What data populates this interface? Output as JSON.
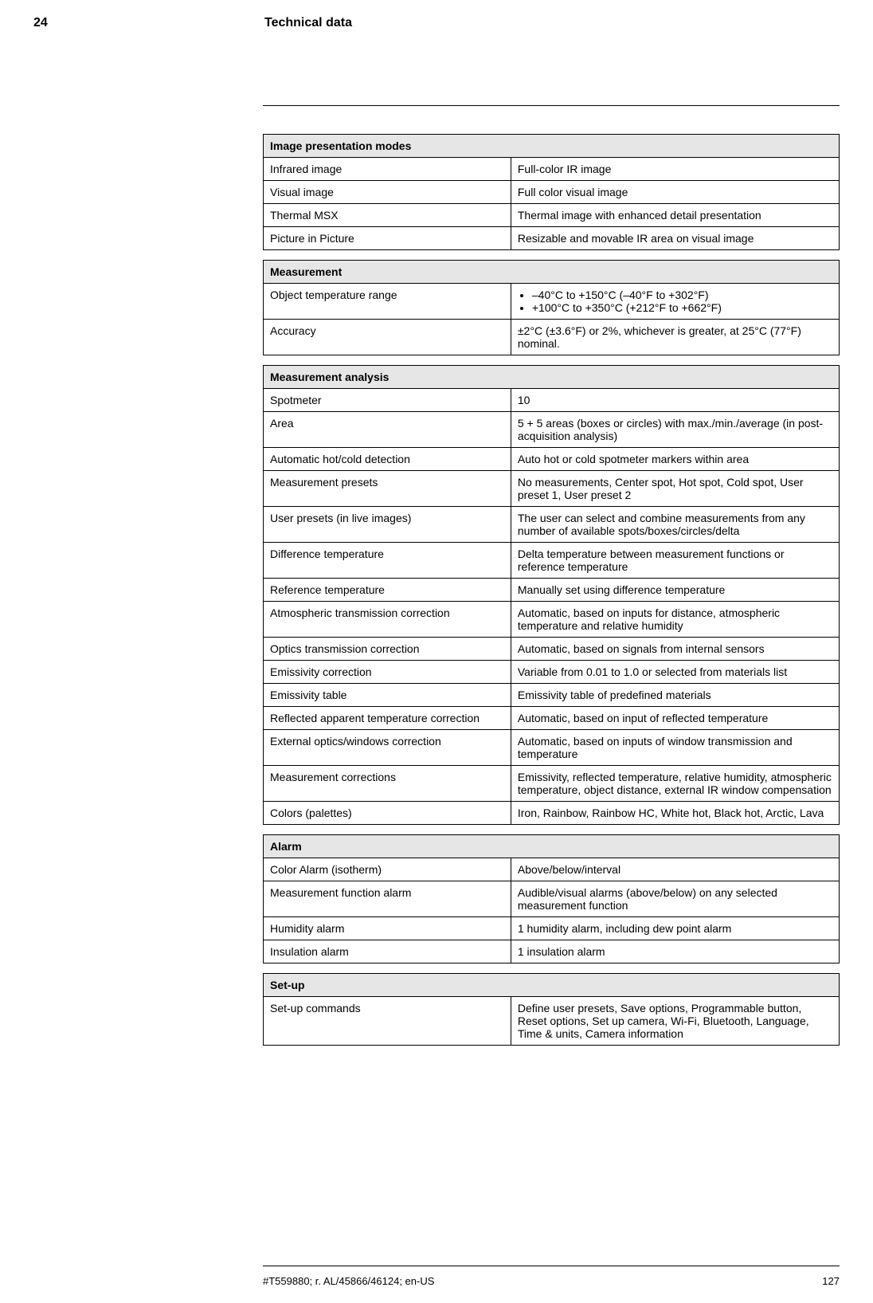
{
  "header": {
    "section_number": "24",
    "title": "Technical data"
  },
  "tables": {
    "image_presentation": {
      "header": "Image presentation modes",
      "rows": [
        {
          "k": "Infrared image",
          "v": "Full-color IR image"
        },
        {
          "k": "Visual image",
          "v": "Full color visual image"
        },
        {
          "k": "Thermal MSX",
          "v": "Thermal image with enhanced detail presentation"
        },
        {
          "k": "Picture in Picture",
          "v": "Resizable and movable IR area on visual image"
        }
      ]
    },
    "measurement": {
      "header": "Measurement",
      "rows": [
        {
          "k": "Object temperature range",
          "list": [
            "–40°C to +150°C (–40°F to +302°F)",
            "+100°C to +350°C (+212°F to +662°F)"
          ]
        },
        {
          "k": "Accuracy",
          "v": "±2°C (±3.6°F) or 2%, whichever is greater, at 25°C (77°F) nominal."
        }
      ]
    },
    "measurement_analysis": {
      "header": "Measurement analysis",
      "rows": [
        {
          "k": "Spotmeter",
          "v": "10"
        },
        {
          "k": "Area",
          "v": "5 + 5 areas (boxes or circles) with max./min./average (in post-acquisition analysis)"
        },
        {
          "k": "Automatic hot/cold detection",
          "v": "Auto hot or cold spotmeter markers within area"
        },
        {
          "k": "Measurement presets",
          "v": "No measurements, Center spot, Hot spot, Cold spot, User preset 1, User preset 2"
        },
        {
          "k": "User presets (in live images)",
          "v": "The user can select and combine measurements from any number of available spots/boxes/circles/delta"
        },
        {
          "k": "Difference temperature",
          "v": "Delta temperature between measurement functions or reference temperature"
        },
        {
          "k": "Reference temperature",
          "v": "Manually set using difference temperature"
        },
        {
          "k": "Atmospheric transmission correction",
          "v": "Automatic, based on inputs for distance, atmospheric temperature and relative humidity"
        },
        {
          "k": "Optics transmission correction",
          "v": "Automatic, based on signals from internal sensors"
        },
        {
          "k": "Emissivity correction",
          "v": "Variable from 0.01 to 1.0 or selected from materials list"
        },
        {
          "k": "Emissivity table",
          "v": "Emissivity table of predefined materials"
        },
        {
          "k": "Reflected apparent temperature correction",
          "v": "Automatic, based on input of reflected temperature"
        },
        {
          "k": "External optics/windows correction",
          "v": "Automatic, based on inputs of window transmission and temperature"
        },
        {
          "k": "Measurement corrections",
          "v": "Emissivity, reflected temperature, relative humidity, atmospheric temperature, object distance, external IR window compensation"
        },
        {
          "k": "Colors (palettes)",
          "v": "Iron, Rainbow, Rainbow HC, White hot, Black hot, Arctic, Lava"
        }
      ]
    },
    "alarm": {
      "header": "Alarm",
      "rows": [
        {
          "k": "Color Alarm (isotherm)",
          "v": "Above/below/interval"
        },
        {
          "k": "Measurement function alarm",
          "v": "Audible/visual alarms (above/below) on any selected measurement function"
        },
        {
          "k": "Humidity alarm",
          "v": "1 humidity alarm, including dew point alarm"
        },
        {
          "k": "Insulation alarm",
          "v": "1 insulation alarm"
        }
      ]
    },
    "setup": {
      "header": "Set-up",
      "rows": [
        {
          "k": "Set-up commands",
          "v": "Define user presets, Save options, Programmable button, Reset options, Set up camera, Wi-Fi, Bluetooth, Language, Time & units, Camera information"
        }
      ]
    }
  },
  "footer": {
    "doc_id": "#T559880; r. AL/45866/46124; en-US",
    "page_number": "127"
  }
}
